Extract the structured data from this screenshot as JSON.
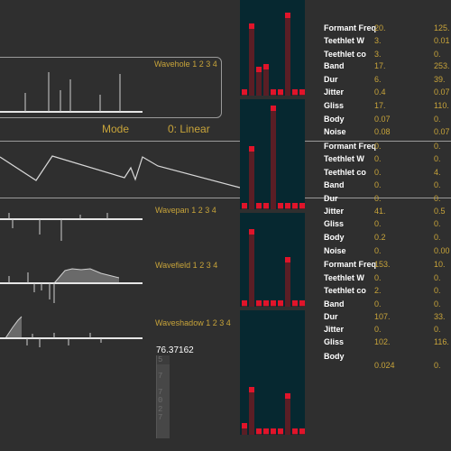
{
  "left": {
    "wavehole_label": "Wavehole 1 2 3 4",
    "mode_label": "Mode",
    "mode_value": "0: Linear",
    "wavepan_label": "Wavepan 1 2 3 4",
    "wavefield_label": "Wavefield 1 2 3 4",
    "waveshadow_label": "Waveshadow 1 2 3 4",
    "number_readout": "76.37162",
    "slider_digits": [
      "5",
      "7",
      "7",
      "0",
      "2",
      "7"
    ]
  },
  "params": {
    "rows": [
      {
        "label": "Formant Freq",
        "v1": "20.",
        "v2": "125."
      },
      {
        "label": "Teethlet W",
        "v1": "3.",
        "v2": "0.01"
      },
      {
        "label": "Teethlet co",
        "v1": "3.",
        "v2": "0."
      },
      {
        "label": "Band",
        "v1": "17.",
        "v2": "253."
      },
      {
        "label": "Dur",
        "v1": "6.",
        "v2": "39."
      },
      {
        "label": "Jitter",
        "v1": "0.4",
        "v2": "0.07"
      },
      {
        "label": "Gliss",
        "v1": "17.",
        "v2": "110."
      },
      {
        "label": "Body",
        "v1": "0.07",
        "v2": "0."
      },
      {
        "label": "Noise",
        "v1": "0.08",
        "v2": "0.07"
      },
      {
        "label": "Formant Freq",
        "v1": "0.",
        "v2": "0."
      },
      {
        "label": "Teethlet W",
        "v1": "0.",
        "v2": "0."
      },
      {
        "label": "Teethlet co",
        "v1": "0.",
        "v2": "4."
      },
      {
        "label": "Band",
        "v1": "0.",
        "v2": "0."
      },
      {
        "label": "Dur",
        "v1": "0.",
        "v2": "0."
      },
      {
        "label": "Jitter",
        "v1": "41.",
        "v2": "0.5"
      },
      {
        "label": "Gliss",
        "v1": "0.",
        "v2": "0."
      },
      {
        "label": "Body",
        "v1": "0.2",
        "v2": "0."
      },
      {
        "label": "Noise",
        "v1": "0.",
        "v2": "0.00"
      },
      {
        "label": "Formant Freq",
        "v1": "153.",
        "v2": "10."
      },
      {
        "label": "Teethlet W",
        "v1": "0.",
        "v2": "0."
      },
      {
        "label": "Teethlet co",
        "v1": "2.",
        "v2": "0."
      },
      {
        "label": "Band",
        "v1": "0.",
        "v2": "0."
      },
      {
        "label": "Dur",
        "v1": "107.",
        "v2": "33."
      },
      {
        "label": "Jitter",
        "v1": "0.",
        "v2": "0."
      },
      {
        "label": "Gliss",
        "v1": "102.",
        "v2": "116."
      },
      {
        "label": "Body",
        "v1": "",
        "v2": ""
      },
      {
        "label": "",
        "v1": "0.024",
        "v2": "0."
      }
    ]
  },
  "histograms": [
    {
      "levels": [
        0.02,
        0.8,
        0.32,
        0.35,
        0.02,
        0.02,
        0.92,
        0.02,
        0.02
      ]
    },
    {
      "levels": [
        0.02,
        0.6,
        0.02,
        0.02,
        0.99,
        0.02,
        0.02,
        0.02,
        0.02
      ]
    },
    {
      "levels": [
        0.02,
        0.88,
        0.02,
        0.02,
        0.02,
        0.02,
        0.56,
        0.02,
        0.02
      ]
    },
    {
      "levels": [
        0.1,
        0.4,
        0.02,
        0.02,
        0.02,
        0.02,
        0.35,
        0.02,
        0.02
      ]
    }
  ],
  "colors": {
    "accent": "#c8a43a",
    "hist_bg": "#062830",
    "bar_top": "#e0142a",
    "bar_body": "#5a1e25"
  }
}
